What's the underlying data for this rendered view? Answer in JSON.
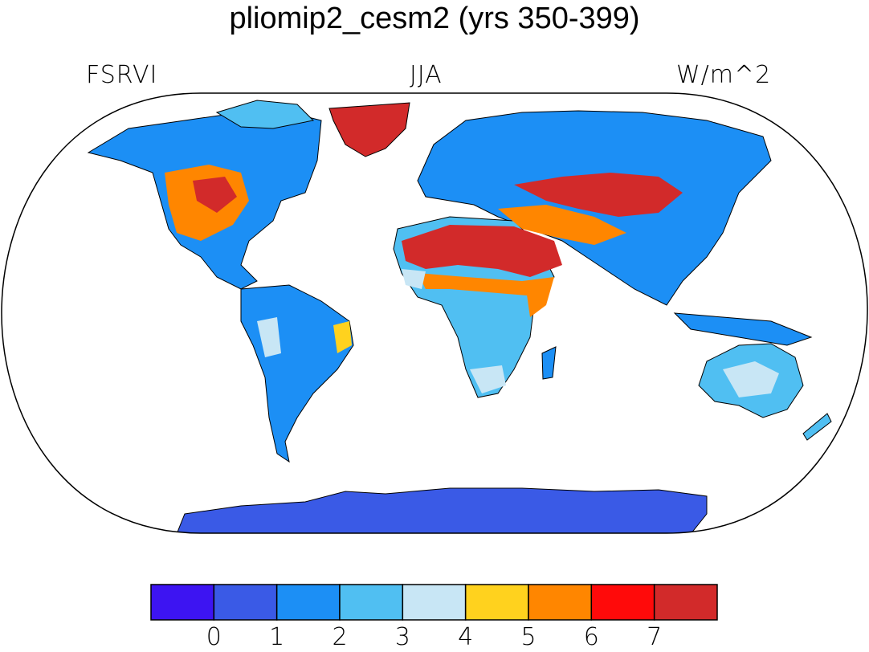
{
  "title": "pliomip2_cesm2 (yrs 350-399)",
  "left_label": "FSRVI",
  "center_label": "JJA",
  "right_label": "W/m^2",
  "colorbar": {
    "colors": [
      "#3d14f2",
      "#3a5ae6",
      "#1c8ff5",
      "#50bff2",
      "#c8e6f5",
      "#ffd21e",
      "#ff8600",
      "#ff0a0a",
      "#d22a2a"
    ],
    "ticks": [
      "0",
      "1",
      "2",
      "3",
      "4",
      "5",
      "6",
      "7"
    ]
  },
  "map": {
    "projection": "Robinson",
    "ocean_color": "#ffffff",
    "coastline_color": "#000000"
  }
}
